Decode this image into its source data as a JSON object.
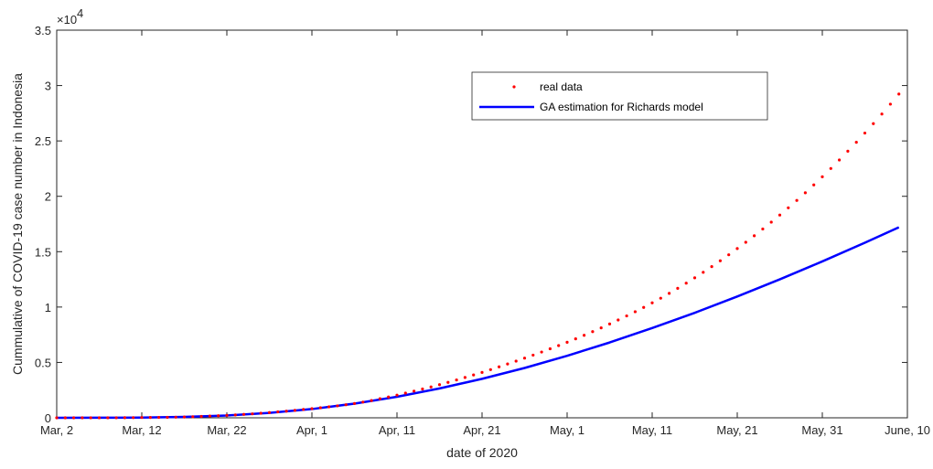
{
  "chart_data": {
    "type": "line",
    "title": "",
    "xlabel": "date of 2020",
    "ylabel": "Cummulative of COVID-19 case number in Indonesia",
    "y_multiplier": {
      "base": "×10",
      "exponent": "4"
    },
    "xlim": [
      0,
      100
    ],
    "ylim": [
      0,
      3.5
    ],
    "x_ticks": [
      {
        "x": 0,
        "label": "Mar, 2"
      },
      {
        "x": 10,
        "label": "Mar, 12"
      },
      {
        "x": 20,
        "label": "Mar, 22"
      },
      {
        "x": 30,
        "label": "Apr, 1"
      },
      {
        "x": 40,
        "label": "Apr, 11"
      },
      {
        "x": 50,
        "label": "Apr, 21"
      },
      {
        "x": 60,
        "label": "May, 1"
      },
      {
        "x": 70,
        "label": "May, 11"
      },
      {
        "x": 80,
        "label": "May, 21"
      },
      {
        "x": 90,
        "label": "May, 31"
      },
      {
        "x": 100,
        "label": "June, 10"
      }
    ],
    "y_ticks": [
      {
        "y": 0,
        "label": "0"
      },
      {
        "y": 0.5,
        "label": "0.5"
      },
      {
        "y": 1,
        "label": "1"
      },
      {
        "y": 1.5,
        "label": "1.5"
      },
      {
        "y": 2,
        "label": "2"
      },
      {
        "y": 2.5,
        "label": "2.5"
      },
      {
        "y": 3,
        "label": "3"
      },
      {
        "y": 3.5,
        "label": "3.5"
      }
    ],
    "grid": false,
    "legend_placement": "top-right",
    "series": [
      {
        "name": "real data",
        "style": "dots",
        "color": "#ff0000",
        "points": [
          [
            0,
            0.0002
          ],
          [
            1,
            0.0002
          ],
          [
            2,
            0.0002
          ],
          [
            3,
            0.0003
          ],
          [
            4,
            0.0003
          ],
          [
            5,
            0.0004
          ],
          [
            6,
            0.0005
          ],
          [
            7,
            0.0007
          ],
          [
            8,
            0.0011
          ],
          [
            9,
            0.0017
          ],
          [
            10,
            0.0027
          ],
          [
            11,
            0.0034
          ],
          [
            12,
            0.0037
          ],
          [
            13,
            0.0045
          ],
          [
            14,
            0.0058
          ],
          [
            15,
            0.0069
          ],
          [
            16,
            0.0093
          ],
          [
            17,
            0.0123
          ],
          [
            18,
            0.0155
          ],
          [
            19,
            0.0186
          ],
          [
            20,
            0.0214
          ],
          [
            21,
            0.026
          ],
          [
            22,
            0.0308
          ],
          [
            23,
            0.0357
          ],
          [
            24,
            0.0414
          ],
          [
            25,
            0.0477
          ],
          [
            26,
            0.0534
          ],
          [
            27,
            0.0601
          ],
          [
            28,
            0.067
          ],
          [
            29,
            0.075
          ],
          [
            30,
            0.083
          ],
          [
            31,
            0.091
          ],
          [
            32,
            0.099
          ],
          [
            33,
            0.108
          ],
          [
            34,
            0.118
          ],
          [
            35,
            0.129
          ],
          [
            36,
            0.142
          ],
          [
            37,
            0.156
          ],
          [
            38,
            0.172
          ],
          [
            39,
            0.188
          ],
          [
            40,
            0.205
          ],
          [
            41,
            0.223
          ],
          [
            42,
            0.241
          ],
          [
            43,
            0.26
          ],
          [
            44,
            0.279
          ],
          [
            45,
            0.299
          ],
          [
            46,
            0.32
          ],
          [
            47,
            0.342
          ],
          [
            48,
            0.364
          ],
          [
            49,
            0.387
          ],
          [
            50,
            0.41
          ],
          [
            51,
            0.435
          ],
          [
            52,
            0.46
          ],
          [
            53,
            0.486
          ],
          [
            54,
            0.512
          ],
          [
            55,
            0.539
          ],
          [
            56,
            0.566
          ],
          [
            57,
            0.594
          ],
          [
            58,
            0.623
          ],
          [
            59,
            0.652
          ],
          [
            60,
            0.682
          ],
          [
            61,
            0.713
          ],
          [
            62,
            0.745
          ],
          [
            63,
            0.778
          ],
          [
            64,
            0.812
          ],
          [
            65,
            0.847
          ],
          [
            66,
            0.883
          ],
          [
            67,
            0.92
          ],
          [
            68,
            0.958
          ],
          [
            69,
            0.997
          ],
          [
            70,
            1.038
          ],
          [
            71,
            1.08
          ],
          [
            72,
            1.124
          ],
          [
            73,
            1.169
          ],
          [
            74,
            1.216
          ],
          [
            75,
            1.264
          ],
          [
            76,
            1.314
          ],
          [
            77,
            1.365
          ],
          [
            78,
            1.418
          ],
          [
            79,
            1.472
          ],
          [
            80,
            1.528
          ],
          [
            81,
            1.585
          ],
          [
            82,
            1.644
          ],
          [
            83,
            1.705
          ],
          [
            84,
            1.767
          ],
          [
            85,
            1.831
          ],
          [
            86,
            1.896
          ],
          [
            87,
            1.963
          ],
          [
            88,
            2.032
          ],
          [
            89,
            2.103
          ],
          [
            90,
            2.176
          ],
          [
            91,
            2.251
          ],
          [
            92,
            2.328
          ],
          [
            93,
            2.407
          ],
          [
            94,
            2.488
          ],
          [
            95,
            2.571
          ],
          [
            96,
            2.656
          ],
          [
            97,
            2.743
          ],
          [
            98,
            2.832
          ],
          [
            99,
            2.923
          ]
        ]
      },
      {
        "name": "GA estimation for Richards model",
        "style": "line",
        "color": "#0000ff",
        "points": [
          [
            0,
            0.0001
          ],
          [
            5,
            0.0006
          ],
          [
            10,
            0.0022
          ],
          [
            15,
            0.008
          ],
          [
            20,
            0.021
          ],
          [
            25,
            0.044
          ],
          [
            30,
            0.079
          ],
          [
            35,
            0.128
          ],
          [
            40,
            0.19
          ],
          [
            45,
            0.265
          ],
          [
            50,
            0.352
          ],
          [
            55,
            0.45
          ],
          [
            60,
            0.56
          ],
          [
            65,
            0.68
          ],
          [
            70,
            0.81
          ],
          [
            75,
            0.948
          ],
          [
            80,
            1.095
          ],
          [
            85,
            1.25
          ],
          [
            90,
            1.412
          ],
          [
            95,
            1.581
          ],
          [
            99,
            1.72
          ]
        ]
      }
    ]
  }
}
